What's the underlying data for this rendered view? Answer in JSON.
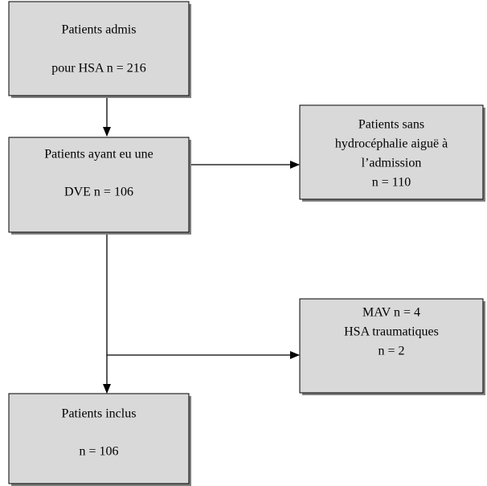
{
  "nodes": [
    {
      "lines": [
        "Patients admis",
        "pour HSA n = 216"
      ]
    },
    {
      "lines": [
        "Patients sans",
        "hydrocéphalie aiguë à",
        "l’admission",
        "n = 110"
      ]
    },
    {
      "lines": [
        "Patients ayant eu une",
        "DVE n = 106"
      ]
    },
    {
      "lines": [
        "MAV n = 4",
        "HSA traumatiques",
        "n = 2"
      ]
    },
    {
      "lines": [
        "Patients inclus",
        "n = 106"
      ]
    }
  ]
}
